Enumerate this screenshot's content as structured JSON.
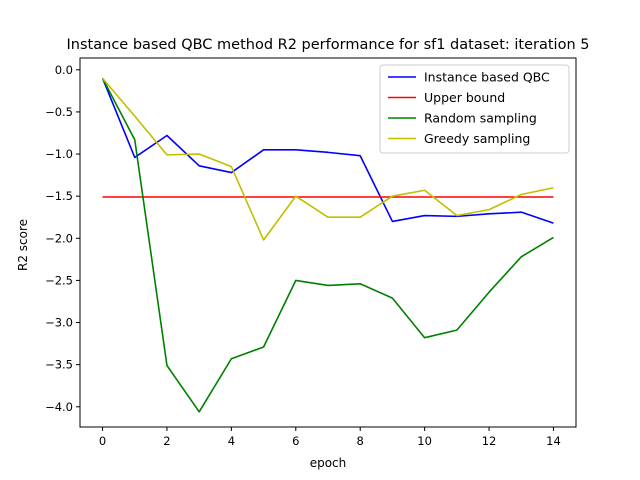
{
  "chart_data": {
    "type": "line",
    "title": "Instance based QBC method R2 performance for sf1 dataset: iteration 5",
    "xlabel": "epoch",
    "ylabel": "R2 score",
    "xlim": [
      -0.7,
      14.7
    ],
    "ylim": [
      -4.24,
      0.14
    ],
    "xticks": [
      0,
      2,
      4,
      6,
      8,
      10,
      12,
      14
    ],
    "yticks": [
      0.0,
      -0.5,
      -1.0,
      -1.5,
      -2.0,
      -2.5,
      -3.0,
      -3.5,
      -4.0
    ],
    "ytick_labels": [
      "0.0",
      "−0.5",
      "−1.0",
      "−1.5",
      "−2.0",
      "−2.5",
      "−3.0",
      "−3.5",
      "−4.0"
    ],
    "grid": false,
    "legend_position": "top-right",
    "x": [
      0,
      1,
      2,
      3,
      4,
      5,
      6,
      7,
      8,
      9,
      10,
      11,
      12,
      13,
      14
    ],
    "series": [
      {
        "name": "Instance based QBC",
        "color": "#0000ff",
        "values": [
          -0.1,
          -1.04,
          -0.78,
          -1.14,
          -1.22,
          -0.95,
          -0.95,
          -0.98,
          -1.02,
          -1.8,
          -1.73,
          -1.74,
          -1.71,
          -1.69,
          -1.82
        ]
      },
      {
        "name": "Upper bound",
        "color": "#ff0000",
        "values": [
          -1.51,
          -1.51,
          -1.51,
          -1.51,
          -1.51,
          -1.51,
          -1.51,
          -1.51,
          -1.51,
          -1.51,
          -1.51,
          -1.51,
          -1.51,
          -1.51,
          -1.51
        ]
      },
      {
        "name": "Random sampling",
        "color": "#008000",
        "values": [
          -0.1,
          -0.83,
          -3.51,
          -4.06,
          -3.43,
          -3.29,
          -2.5,
          -2.56,
          -2.54,
          -2.71,
          -3.18,
          -3.09,
          -2.64,
          -2.22,
          -1.99
        ]
      },
      {
        "name": "Greedy sampling",
        "color": "#bfbf00",
        "values": [
          -0.1,
          -0.55,
          -1.01,
          -1.0,
          -1.15,
          -2.02,
          -1.5,
          -1.75,
          -1.75,
          -1.5,
          -1.43,
          -1.73,
          -1.66,
          -1.48,
          -1.4
        ]
      }
    ]
  }
}
